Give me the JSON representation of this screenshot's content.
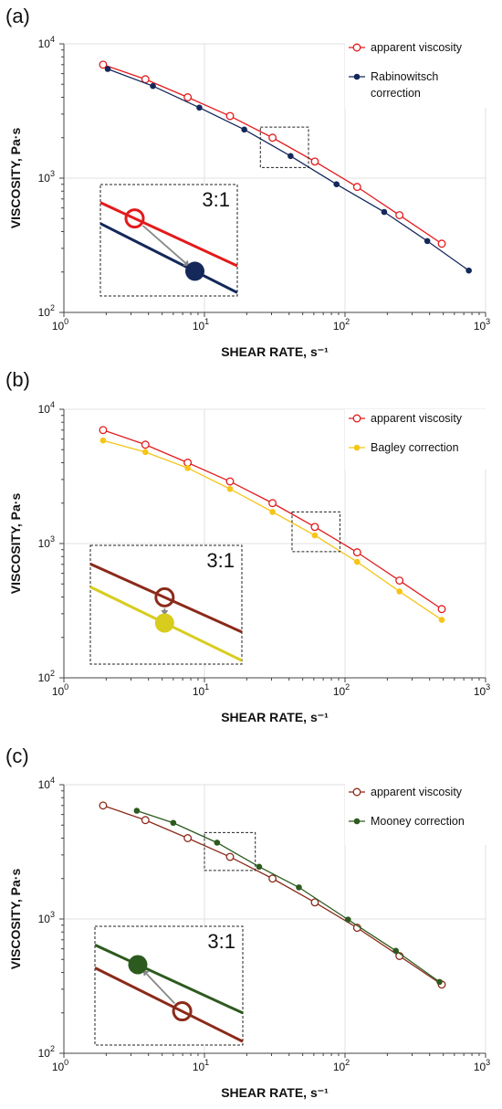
{
  "chart_data": [
    {
      "panel_label": "(a)",
      "type": "line",
      "xlabel": "SHEAR RATE, s⁻¹",
      "ylabel": "VISCOSITY, Pa·s",
      "xscale": "log",
      "yscale": "log",
      "xlim": [
        1,
        1000
      ],
      "ylim": [
        100,
        10000
      ],
      "x_ticks": [
        {
          "base": "10",
          "exp": "0"
        },
        {
          "base": "10",
          "exp": "1"
        },
        {
          "base": "10",
          "exp": "2"
        },
        {
          "base": "10",
          "exp": "3"
        }
      ],
      "y_ticks": [
        {
          "base": "10",
          "exp": "2"
        },
        {
          "base": "10",
          "exp": "3"
        },
        {
          "base": "10",
          "exp": "4"
        }
      ],
      "grid": true,
      "legend_position": "top-right",
      "series": [
        {
          "name": "apparent viscosity",
          "color": "#e31a1c",
          "marker": "open-circle",
          "x": [
            1.9,
            3.8,
            7.6,
            15.2,
            30.5,
            61,
            122,
            244,
            488
          ],
          "y": [
            7000,
            5450,
            4000,
            2900,
            2000,
            1330,
            860,
            530,
            325
          ]
        },
        {
          "name": "Rabinowitsch correction",
          "color": "#14285a",
          "marker": "filled-circle",
          "x": [
            2.05,
            4.3,
            9.2,
            19.2,
            41,
            87,
            190,
            385,
            760
          ],
          "y": [
            6500,
            4850,
            3350,
            2300,
            1460,
            900,
            560,
            340,
            205
          ]
        }
      ],
      "legend": [
        "apparent viscosity",
        "Rabinowitsch",
        "correction"
      ],
      "annotation": {
        "box": {
          "x": [
            25,
            55
          ],
          "y": [
            1200,
            2400
          ]
        },
        "inset_ratio": "3:1",
        "inset_colors": {
          "upper": "#e31a1c",
          "lower": "#14285a",
          "arrow": "#888888"
        }
      }
    },
    {
      "panel_label": "(b)",
      "type": "line",
      "xlabel": "SHEAR RATE, s⁻¹",
      "ylabel": "VISCOSITY, Pa·s",
      "xscale": "log",
      "yscale": "log",
      "xlim": [
        1,
        1000
      ],
      "ylim": [
        100,
        10000
      ],
      "x_ticks": [
        {
          "base": "10",
          "exp": "0"
        },
        {
          "base": "10",
          "exp": "1"
        },
        {
          "base": "10",
          "exp": "2"
        },
        {
          "base": "10",
          "exp": "3"
        }
      ],
      "y_ticks": [
        {
          "base": "10",
          "exp": "2"
        },
        {
          "base": "10",
          "exp": "3"
        },
        {
          "base": "10",
          "exp": "4"
        }
      ],
      "grid": true,
      "legend_position": "top-right",
      "series": [
        {
          "name": "apparent viscosity",
          "color": "#e31a1c",
          "marker": "open-circle",
          "x": [
            1.9,
            3.8,
            7.6,
            15.2,
            30.5,
            61,
            122,
            244,
            488
          ],
          "y": [
            7000,
            5450,
            4000,
            2900,
            2000,
            1330,
            860,
            530,
            325
          ]
        },
        {
          "name": "Bagley correction",
          "color": "#f5c518",
          "marker": "filled-circle",
          "x": [
            1.9,
            3.8,
            7.6,
            15.2,
            30.5,
            61,
            122,
            244,
            488
          ],
          "y": [
            5850,
            4800,
            3650,
            2550,
            1720,
            1150,
            730,
            440,
            270
          ]
        }
      ],
      "legend": [
        "apparent viscosity",
        "Bagley correction"
      ],
      "annotation": {
        "box": {
          "x": [
            42,
            92
          ],
          "y": [
            870,
            1720
          ]
        },
        "inset_ratio": "3:1",
        "inset_colors": {
          "upper": "#8b2a1a",
          "lower": "#d8cc1e",
          "arrow": "#888888"
        }
      }
    },
    {
      "panel_label": "(c)",
      "type": "line",
      "xlabel": "SHEAR RATE, s⁻¹",
      "ylabel": "VISCOSITY, Pa·s",
      "xscale": "log",
      "yscale": "log",
      "xlim": [
        1,
        1000
      ],
      "ylim": [
        100,
        10000
      ],
      "x_ticks": [
        {
          "base": "10",
          "exp": "0"
        },
        {
          "base": "10",
          "exp": "1"
        },
        {
          "base": "10",
          "exp": "2"
        },
        {
          "base": "10",
          "exp": "3"
        }
      ],
      "y_ticks": [
        {
          "base": "10",
          "exp": "2"
        },
        {
          "base": "10",
          "exp": "3"
        },
        {
          "base": "10",
          "exp": "4"
        }
      ],
      "grid": true,
      "legend_position": "top-right",
      "series": [
        {
          "name": "apparent viscosity",
          "color": "#8b2a1a",
          "marker": "open-circle",
          "x": [
            1.9,
            3.8,
            7.6,
            15.2,
            30.5,
            61,
            122,
            244,
            488
          ],
          "y": [
            7000,
            5450,
            4000,
            2900,
            2000,
            1330,
            860,
            530,
            325
          ]
        },
        {
          "name": "Mooney correction",
          "color": "#2d5a1e",
          "marker": "filled-circle",
          "x": [
            3.3,
            6.0,
            12.3,
            24.5,
            47,
            105,
            230,
            470
          ],
          "y": [
            6400,
            5200,
            3700,
            2450,
            1720,
            990,
            580,
            340
          ]
        }
      ],
      "legend": [
        "apparent viscosity",
        "Mooney correction"
      ],
      "annotation": {
        "box": {
          "x": [
            10,
            23
          ],
          "y": [
            2300,
            4400
          ]
        },
        "inset_ratio": "3:1",
        "inset_colors": {
          "upper": "#2d5a1e",
          "lower": "#8b2a1a",
          "arrow": "#888888"
        }
      }
    }
  ]
}
